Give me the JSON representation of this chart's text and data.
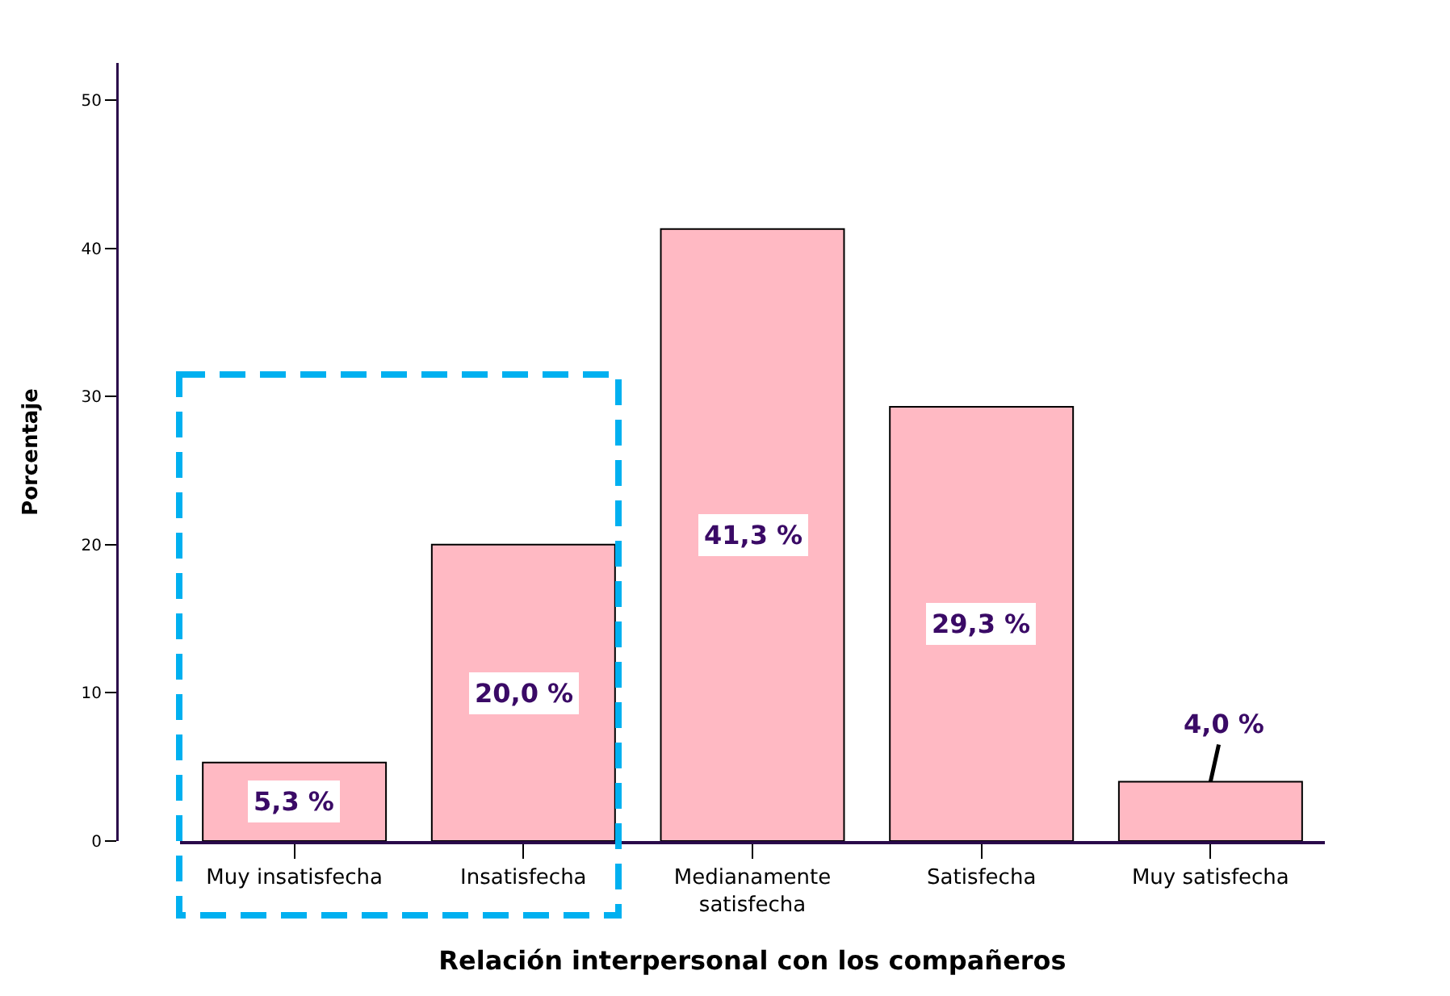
{
  "chart_data": {
    "type": "bar",
    "categories": [
      "Muy insatisfecha",
      "Insatisfecha",
      "Medianamente satisfecha",
      "Satisfecha",
      "Muy satisfecha"
    ],
    "values": [
      5.3,
      20.0,
      41.3,
      29.3,
      4.0
    ],
    "color": "#ffb9c3",
    "value_labels": [
      "5,3 %",
      "20,0 %",
      "41,3 %",
      "29,3 %",
      "4,0 %"
    ],
    "xlabel": "Relación interpersonal con los compañeros",
    "ylabel": "Porcentaje",
    "ylim": [
      0,
      52.5
    ],
    "yticks": [
      0,
      10,
      20,
      30,
      40,
      50
    ]
  }
}
